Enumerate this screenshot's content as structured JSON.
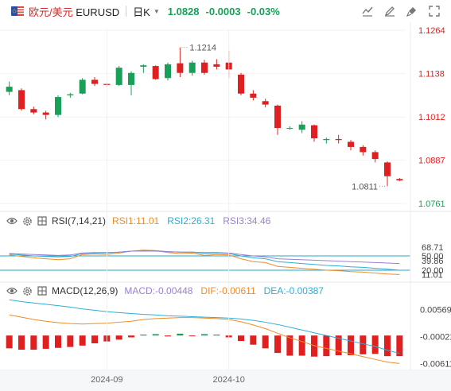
{
  "header": {
    "symbol_cn": "欧元/美元",
    "symbol_code": "EURUSD",
    "period": "日K",
    "price": "1.0828",
    "change": "-0.0003",
    "change_pct": "-0.03%"
  },
  "rsi_header": {
    "name": "RSI(7,14,21)",
    "rsi1": "RSI1:11.01",
    "rsi2": "RSI2:26.31",
    "rsi3": "RSI3:34.46"
  },
  "macd_header": {
    "name": "MACD(12,26,9)",
    "macd": "MACD:-0.00448",
    "dif": "DIF:-0.00611",
    "dea": "DEA:-0.00387"
  },
  "colors": {
    "up": "#18a058",
    "down": "#e02020",
    "rsi1": "#f08c28",
    "rsi2": "#2bb0d6",
    "rsi3": "#9b7fd4",
    "dif": "#f08c28",
    "dea": "#2bb0d6",
    "hline": "#2aa7c9"
  },
  "chart_data": [
    {
      "type": "candlestick",
      "title": "",
      "yticks": [
        "1.1264",
        "1.1138",
        "1.1012",
        "1.0887",
        "1.0761"
      ],
      "ylim": [
        1.0761,
        1.1264
      ],
      "xticks": [
        "2024-09",
        "2024-10"
      ],
      "annotations": {
        "high": "1.1214",
        "low": "1.0811"
      },
      "candles": [
        {
          "o": 1.1085,
          "h": 1.1115,
          "l": 1.1075,
          "c": 1.11
        },
        {
          "o": 1.109,
          "h": 1.1095,
          "l": 1.103,
          "c": 1.1035
        },
        {
          "o": 1.1035,
          "h": 1.1042,
          "l": 1.102,
          "c": 1.1025
        },
        {
          "o": 1.1025,
          "h": 1.103,
          "l": 1.1005,
          "c": 1.1018
        },
        {
          "o": 1.1018,
          "h": 1.1075,
          "l": 1.1012,
          "c": 1.107
        },
        {
          "o": 1.1075,
          "h": 1.1082,
          "l": 1.1068,
          "c": 1.1078
        },
        {
          "o": 1.108,
          "h": 1.1125,
          "l": 1.1078,
          "c": 1.112
        },
        {
          "o": 1.112,
          "h": 1.1128,
          "l": 1.1102,
          "c": 1.1108
        },
        {
          "o": 1.1108,
          "h": 1.1112,
          "l": 1.11,
          "c": 1.1105
        },
        {
          "o": 1.1105,
          "h": 1.116,
          "l": 1.1102,
          "c": 1.1155
        },
        {
          "o": 1.1105,
          "h": 1.1145,
          "l": 1.1075,
          "c": 1.114
        },
        {
          "o": 1.1158,
          "h": 1.1165,
          "l": 1.114,
          "c": 1.1162
        },
        {
          "o": 1.116,
          "h": 1.1162,
          "l": 1.112,
          "c": 1.1122
        },
        {
          "o": 1.1125,
          "h": 1.117,
          "l": 1.1118,
          "c": 1.1165
        },
        {
          "o": 1.1168,
          "h": 1.1214,
          "l": 1.1128,
          "c": 1.114
        },
        {
          "o": 1.114,
          "h": 1.1175,
          "l": 1.1132,
          "c": 1.117
        },
        {
          "o": 1.117,
          "h": 1.1178,
          "l": 1.1135,
          "c": 1.114
        },
        {
          "o": 1.1165,
          "h": 1.118,
          "l": 1.115,
          "c": 1.1158
        },
        {
          "o": 1.117,
          "h": 1.1205,
          "l": 1.1125,
          "c": 1.115
        },
        {
          "o": 1.1135,
          "h": 1.114,
          "l": 1.1075,
          "c": 1.108
        },
        {
          "o": 1.108,
          "h": 1.109,
          "l": 1.106,
          "c": 1.1068
        },
        {
          "o": 1.1058,
          "h": 1.1065,
          "l": 1.104,
          "c": 1.1048
        },
        {
          "o": 1.1045,
          "h": 1.1048,
          "l": 1.096,
          "c": 1.098
        },
        {
          "o": 1.098,
          "h": 1.0985,
          "l": 1.0975,
          "c": 1.098
        },
        {
          "o": 1.0975,
          "h": 1.1,
          "l": 1.0965,
          "c": 1.099
        },
        {
          "o": 1.0988,
          "h": 1.099,
          "l": 1.094,
          "c": 1.095
        },
        {
          "o": 1.0945,
          "h": 1.0952,
          "l": 1.0935,
          "c": 1.0948
        },
        {
          "o": 1.0948,
          "h": 1.096,
          "l": 1.0935,
          "c": 1.0945
        },
        {
          "o": 1.094,
          "h": 1.0945,
          "l": 1.0915,
          "c": 1.0925
        },
        {
          "o": 1.0925,
          "h": 1.093,
          "l": 1.09,
          "c": 1.091
        },
        {
          "o": 1.091,
          "h": 1.0915,
          "l": 1.088,
          "c": 1.089
        },
        {
          "o": 1.088,
          "h": 1.0883,
          "l": 1.0811,
          "c": 1.084
        },
        {
          "o": 1.0832,
          "h": 1.0835,
          "l": 1.0826,
          "c": 1.0828
        }
      ]
    },
    {
      "type": "line",
      "title": "RSI(7,14,21)",
      "yticks": [
        "68.71",
        "50.00",
        "39.86",
        "20.00",
        "11.01"
      ],
      "ylim": [
        0,
        100
      ],
      "reference_lines": [
        50,
        20
      ],
      "series": [
        {
          "name": "RSI1",
          "values": [
            52,
            49,
            46,
            44,
            42,
            44,
            53,
            54,
            53,
            56,
            60,
            62,
            61,
            57,
            55,
            56,
            51,
            53,
            52,
            44,
            38,
            36,
            28,
            26,
            24,
            22,
            20,
            19,
            17,
            16,
            14,
            12,
            11
          ]
        },
        {
          "name": "RSI2",
          "values": [
            54,
            52,
            50,
            49,
            48,
            49,
            55,
            56,
            56,
            58,
            60,
            61,
            61,
            59,
            58,
            58,
            55,
            56,
            55,
            50,
            46,
            44,
            38,
            36,
            34,
            32,
            30,
            29,
            27,
            26,
            24,
            22,
            20
          ]
        },
        {
          "name": "RSI3",
          "values": [
            55,
            54,
            53,
            52,
            51,
            52,
            56,
            57,
            57,
            58,
            60,
            60,
            60,
            59,
            58,
            58,
            57,
            57,
            56,
            53,
            50,
            48,
            44,
            43,
            42,
            41,
            40,
            39,
            38,
            37,
            36,
            35,
            34
          ]
        }
      ]
    },
    {
      "type": "bar+line",
      "title": "MACD(12,26,9)",
      "yticks": [
        "0.00569",
        "-0.00021",
        "-0.00611"
      ],
      "ylim": [
        -0.0069,
        0.008
      ],
      "macd": [
        -0.0028,
        -0.0031,
        -0.0031,
        -0.0029,
        -0.0027,
        -0.0025,
        -0.0022,
        -0.0017,
        -0.0013,
        -0.0009,
        -0.0004,
        0.0002,
        0.0003,
        -0.0002,
        0.0004,
        -0.0001,
        0.0003,
        0.0002,
        -0.0004,
        -0.0012,
        -0.002,
        -0.0028,
        -0.0038,
        -0.0044,
        -0.0044,
        -0.0046,
        -0.0045,
        -0.0043,
        -0.0043,
        -0.0041,
        -0.004,
        -0.0045,
        -0.0045
      ],
      "dif": [
        0.0045,
        0.004,
        0.0035,
        0.0031,
        0.0028,
        0.0026,
        0.0025,
        0.0026,
        0.0027,
        0.0029,
        0.0031,
        0.0035,
        0.0037,
        0.0038,
        0.0039,
        0.0039,
        0.0038,
        0.0037,
        0.0035,
        0.003,
        0.0023,
        0.0015,
        0.0005,
        -0.0005,
        -0.0013,
        -0.0022,
        -0.0028,
        -0.0034,
        -0.004,
        -0.0046,
        -0.0052,
        -0.0058,
        -0.0061
      ],
      "dea": [
        0.0078,
        0.0074,
        0.0071,
        0.0068,
        0.0065,
        0.0062,
        0.0058,
        0.0055,
        0.0052,
        0.005,
        0.0048,
        0.0046,
        0.0045,
        0.0043,
        0.0042,
        0.0041,
        0.004,
        0.0039,
        0.0038,
        0.0036,
        0.0033,
        0.0029,
        0.0024,
        0.0018,
        0.0012,
        0.0006,
        0.0,
        -0.0006,
        -0.0012,
        -0.0018,
        -0.0024,
        -0.0032,
        -0.0039
      ]
    }
  ]
}
